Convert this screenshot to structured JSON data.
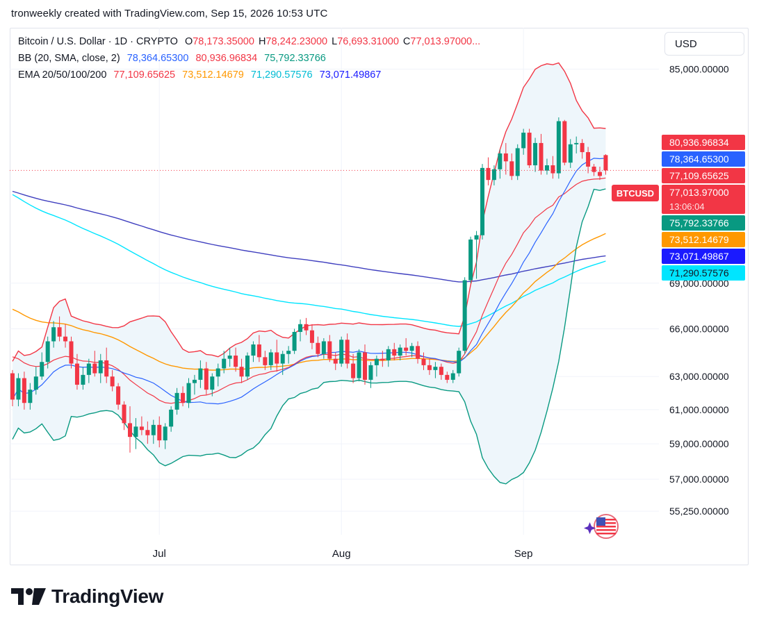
{
  "header": {
    "text": "tronweekly created with TradingView.com, Sep 15, 2026 10:53 UTC"
  },
  "legend": {
    "symbol": "Bitcoin / U.S. Dollar · 1D · CRYPTO",
    "ohlc": [
      {
        "prefix": "O",
        "value": "78,173.35000"
      },
      {
        "prefix": "H",
        "value": "78,242.23000"
      },
      {
        "prefix": "L",
        "value": "76,693.31000"
      },
      {
        "prefix": "C",
        "value": "77,013.97000..."
      }
    ],
    "bb_label": "BB (20, SMA, close, 2)",
    "bb_values": [
      "78,364.65300",
      "80,936.96834",
      "75,792.33766"
    ],
    "ema_label": "EMA 20/50/100/200",
    "ema_values": [
      "77,109.65625",
      "73,512.14679",
      "71,290.57576",
      "73,071.49867"
    ]
  },
  "currency_button": "USD",
  "colors": {
    "up": "#089981",
    "down": "#f23645",
    "bb_basis": "#2962ff",
    "bb_upper": "#f23645",
    "bb_lower": "#089981",
    "bb_fill": "#eef6fb",
    "ema20": "#f23645",
    "ema50": "#ff9800",
    "ema100": "#00e5ff",
    "ema200": "#3f3fbf",
    "text": "#131722",
    "grid": "#f0f3fa"
  },
  "price_axis": {
    "ticks": [
      "85,000.00000",
      "69,000.00000",
      "66,000.00000",
      "63,000.00000",
      "61,000.00000",
      "59,000.00000",
      "57,000.00000",
      "55,250.00000"
    ],
    "labels": [
      {
        "text": "80,936.96834",
        "color": "#f23645"
      },
      {
        "text": "78,364.65300",
        "color": "#2962ff"
      },
      {
        "text": "77,109.65625",
        "color": "#f23645"
      },
      {
        "text": "77,013.97000",
        "color": "#f23645",
        "sub": "13:06:04"
      },
      {
        "text": "75,792.33766",
        "color": "#089981"
      },
      {
        "text": "73,512.14679",
        "color": "#ff9800"
      },
      {
        "text": "73,071.49867",
        "color": "#1a1aff"
      },
      {
        "text": "71,290.57576",
        "color": "#00e5ff"
      }
    ],
    "symbol_tag": "BTCUSD"
  },
  "time_axis": {
    "labels": [
      "Jul",
      "Aug",
      "Sep"
    ]
  },
  "brand": {
    "name": "TradingView"
  },
  "chart_data": {
    "type": "candlestick",
    "title": "Bitcoin / U.S. Dollar · 1D · CRYPTO",
    "x": [
      "2026-06-06",
      "2026-06-07",
      "2026-06-08",
      "2026-06-09",
      "2026-06-10",
      "2026-06-11",
      "2026-06-12",
      "2026-06-13",
      "2026-06-14",
      "2026-06-15",
      "2026-06-16",
      "2026-06-17",
      "2026-06-18",
      "2026-06-19",
      "2026-06-20",
      "2026-06-21",
      "2026-06-22",
      "2026-06-23",
      "2026-06-24",
      "2026-06-25",
      "2026-06-26",
      "2026-06-27",
      "2026-06-28",
      "2026-06-29",
      "2026-06-30",
      "2026-07-01",
      "2026-07-02",
      "2026-07-03",
      "2026-07-04",
      "2026-07-05",
      "2026-07-06",
      "2026-07-07",
      "2026-07-08",
      "2026-07-09",
      "2026-07-10",
      "2026-07-11",
      "2026-07-12",
      "2026-07-13",
      "2026-07-14",
      "2026-07-15",
      "2026-07-16",
      "2026-07-17",
      "2026-07-18",
      "2026-07-19",
      "2026-07-20",
      "2026-07-21",
      "2026-07-22",
      "2026-07-23",
      "2026-07-24",
      "2026-07-25",
      "2026-07-26",
      "2026-07-27",
      "2026-07-28",
      "2026-07-29",
      "2026-07-30",
      "2026-07-31",
      "2026-08-01",
      "2026-08-02",
      "2026-08-03",
      "2026-08-04",
      "2026-08-05",
      "2026-08-06",
      "2026-08-07",
      "2026-08-08",
      "2026-08-09",
      "2026-08-10",
      "2026-08-11",
      "2026-08-12",
      "2026-08-13",
      "2026-08-14",
      "2026-08-15",
      "2026-08-16",
      "2026-08-17",
      "2026-08-18",
      "2026-08-19",
      "2026-08-20",
      "2026-08-21",
      "2026-08-22",
      "2026-08-23",
      "2026-08-24",
      "2026-08-25",
      "2026-08-26",
      "2026-08-27",
      "2026-08-28",
      "2026-08-29",
      "2026-08-30",
      "2026-08-31",
      "2026-09-01",
      "2026-09-02",
      "2026-09-03",
      "2026-09-04",
      "2026-09-05",
      "2026-09-06",
      "2026-09-07",
      "2026-09-08",
      "2026-09-09",
      "2026-09-10",
      "2026-09-11",
      "2026-09-12",
      "2026-09-13",
      "2026-09-14",
      "2026-09-15"
    ],
    "ohlc": [
      [
        63200,
        63400,
        61200,
        61600
      ],
      [
        61600,
        63200,
        61200,
        62900
      ],
      [
        62900,
        63300,
        61000,
        61400
      ],
      [
        61400,
        62600,
        61000,
        62200
      ],
      [
        62200,
        63600,
        61900,
        63000
      ],
      [
        63000,
        64500,
        62800,
        63900
      ],
      [
        63900,
        65500,
        63500,
        65200
      ],
      [
        65200,
        66500,
        64800,
        66100
      ],
      [
        66100,
        66800,
        65200,
        65500
      ],
      [
        65500,
        66300,
        64800,
        65200
      ],
      [
        65200,
        65500,
        63500,
        63800
      ],
      [
        63800,
        64400,
        62200,
        62500
      ],
      [
        62500,
        63600,
        62200,
        63100
      ],
      [
        63100,
        64100,
        62600,
        63800
      ],
      [
        63800,
        64600,
        63000,
        63200
      ],
      [
        63200,
        64400,
        62600,
        64000
      ],
      [
        64000,
        64800,
        62600,
        63000
      ],
      [
        63000,
        63400,
        62100,
        62400
      ],
      [
        62400,
        62600,
        61000,
        61300
      ],
      [
        61300,
        61500,
        59800,
        60200
      ],
      [
        60200,
        61200,
        58500,
        59400
      ],
      [
        59400,
        60500,
        58700,
        60000
      ],
      [
        60000,
        60600,
        59500,
        59800
      ],
      [
        59800,
        60300,
        59000,
        59500
      ],
      [
        59500,
        60400,
        59000,
        60100
      ],
      [
        60100,
        60600,
        58800,
        59200
      ],
      [
        59200,
        60200,
        58700,
        60000
      ],
      [
        60000,
        61200,
        59700,
        61000
      ],
      [
        61000,
        62300,
        60700,
        62000
      ],
      [
        62000,
        62400,
        61200,
        61400
      ],
      [
        61400,
        62900,
        61100,
        62600
      ],
      [
        62600,
        63100,
        61900,
        62800
      ],
      [
        62800,
        64000,
        62300,
        63500
      ],
      [
        63500,
        63900,
        61900,
        62200
      ],
      [
        62200,
        63200,
        61800,
        63000
      ],
      [
        63000,
        63800,
        62400,
        63500
      ],
      [
        63500,
        64600,
        63200,
        64100
      ],
      [
        64100,
        64800,
        63600,
        64300
      ],
      [
        64300,
        64800,
        63300,
        63600
      ],
      [
        63600,
        64100,
        62600,
        63000
      ],
      [
        63000,
        64500,
        62800,
        64300
      ],
      [
        64300,
        65200,
        63900,
        65000
      ],
      [
        65000,
        65600,
        63900,
        64200
      ],
      [
        64200,
        64600,
        63400,
        63700
      ],
      [
        63700,
        64700,
        63400,
        64500
      ],
      [
        64500,
        65300,
        63300,
        63800
      ],
      [
        63800,
        64600,
        63100,
        64400
      ],
      [
        64400,
        64900,
        63800,
        64600
      ],
      [
        64600,
        66000,
        64400,
        65800
      ],
      [
        65800,
        66600,
        65200,
        66300
      ],
      [
        66300,
        66700,
        65600,
        65900
      ],
      [
        65900,
        66300,
        64700,
        65100
      ],
      [
        65100,
        65500,
        64200,
        64400
      ],
      [
        64400,
        65400,
        64100,
        65200
      ],
      [
        65200,
        65600,
        63900,
        64100
      ],
      [
        64100,
        64500,
        63400,
        63800
      ],
      [
        63800,
        65500,
        63600,
        65300
      ],
      [
        65300,
        65700,
        63500,
        63800
      ],
      [
        63800,
        64400,
        62600,
        62900
      ],
      [
        62900,
        64700,
        62700,
        64500
      ],
      [
        64500,
        65000,
        62500,
        62800
      ],
      [
        62800,
        63900,
        62300,
        63700
      ],
      [
        63700,
        64300,
        63000,
        64100
      ],
      [
        64100,
        64600,
        63600,
        64000
      ],
      [
        64000,
        64900,
        63600,
        64700
      ],
      [
        64700,
        65100,
        64000,
        64300
      ],
      [
        64300,
        65000,
        64000,
        64800
      ],
      [
        64800,
        65400,
        64300,
        64600
      ],
      [
        64600,
        65100,
        64200,
        64900
      ],
      [
        64900,
        65200,
        63800,
        64100
      ],
      [
        64100,
        64500,
        63400,
        63700
      ],
      [
        63700,
        64100,
        63100,
        63400
      ],
      [
        63400,
        63900,
        62900,
        63600
      ],
      [
        63600,
        63800,
        62800,
        63100
      ],
      [
        63100,
        63300,
        62600,
        62800
      ],
      [
        62800,
        63400,
        62600,
        63200
      ],
      [
        63200,
        64800,
        63000,
        64600
      ],
      [
        64600,
        69400,
        64400,
        69200
      ],
      [
        69200,
        72200,
        69000,
        72000
      ],
      [
        72000,
        72600,
        69300,
        72300
      ],
      [
        72300,
        77500,
        72000,
        77200
      ],
      [
        77200,
        78000,
        75900,
        76300
      ],
      [
        76300,
        77400,
        75900,
        77100
      ],
      [
        77100,
        78600,
        76400,
        78300
      ],
      [
        78300,
        79100,
        76700,
        77700
      ],
      [
        77700,
        78300,
        76300,
        76600
      ],
      [
        76600,
        79000,
        76300,
        78700
      ],
      [
        78700,
        80200,
        78200,
        79900
      ],
      [
        79900,
        80200,
        77200,
        77400
      ],
      [
        77400,
        79500,
        76900,
        79100
      ],
      [
        79100,
        79800,
        76700,
        77000
      ],
      [
        77000,
        77900,
        76700,
        77400
      ],
      [
        77400,
        78100,
        76400,
        76800
      ],
      [
        76800,
        81100,
        76400,
        80800
      ],
      [
        80800,
        80900,
        77400,
        77600
      ],
      [
        77600,
        79400,
        77200,
        79000
      ],
      [
        79000,
        79600,
        78300,
        79100
      ],
      [
        79100,
        79400,
        77900,
        78400
      ],
      [
        78400,
        78800,
        76800,
        77300
      ],
      [
        77300,
        77500,
        76600,
        76900
      ],
      [
        76900,
        77300,
        76300,
        76600
      ],
      [
        78173.35,
        78242.23,
        76693.31,
        77013.97
      ]
    ],
    "last_price": 77013.97,
    "indicators": {
      "BB (20, SMA, close, 2)": {
        "basis": 78364.653,
        "upper": 80936.96834,
        "lower": 75792.33766
      },
      "EMA 20": 77109.65625,
      "EMA 50": 73512.14679,
      "EMA 100": 71290.57576,
      "EMA 200": 73071.49867
    },
    "xlabel": "",
    "ylabel": "",
    "ylim": [
      54000,
      88500
    ],
    "y_scale": "log",
    "grid": true,
    "legend": "top-left"
  }
}
